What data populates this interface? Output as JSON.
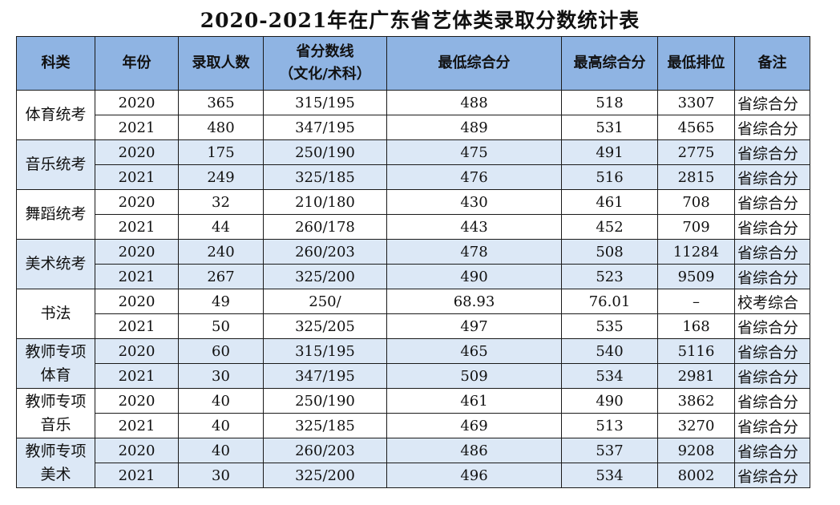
{
  "title": "2020-2021年在广东省艺体类录取分数统计表",
  "headers": [
    "科类",
    "年份",
    "录取人数",
    "省分数线",
    "（文化/术科）",
    "最低综合分",
    "最高综合分",
    "最低排位",
    "备注"
  ],
  "groups": [
    {
      "cat1": "体育统考",
      "cat2": "",
      "shade": false,
      "rows": [
        {
          "year": "2020",
          "count": "365",
          "line": "315/195",
          "min": "488",
          "max": "518",
          "rank": "3307",
          "note": "省综合分"
        },
        {
          "year": "2021",
          "count": "480",
          "line": "347/195",
          "min": "489",
          "max": "531",
          "rank": "4565",
          "note": "省综合分"
        }
      ]
    },
    {
      "cat1": "音乐统考",
      "cat2": "",
      "shade": true,
      "rows": [
        {
          "year": "2020",
          "count": "175",
          "line": "250/190",
          "min": "475",
          "max": "491",
          "rank": "2775",
          "note": "省综合分"
        },
        {
          "year": "2021",
          "count": "249",
          "line": "325/185",
          "min": "476",
          "max": "516",
          "rank": "2815",
          "note": "省综合分"
        }
      ]
    },
    {
      "cat1": "舞蹈统考",
      "cat2": "",
      "shade": false,
      "rows": [
        {
          "year": "2020",
          "count": "32",
          "line": "210/180",
          "min": "430",
          "max": "461",
          "rank": "708",
          "note": "省综合分"
        },
        {
          "year": "2021",
          "count": "44",
          "line": "260/178",
          "min": "443",
          "max": "452",
          "rank": "709",
          "note": "省综合分"
        }
      ]
    },
    {
      "cat1": "美术统考",
      "cat2": "",
      "shade": true,
      "rows": [
        {
          "year": "2020",
          "count": "240",
          "line": "260/203",
          "min": "478",
          "max": "508",
          "rank": "11284",
          "note": "省综合分"
        },
        {
          "year": "2021",
          "count": "267",
          "line": "325/200",
          "min": "490",
          "max": "523",
          "rank": "9509",
          "note": "省综合分"
        }
      ]
    },
    {
      "cat1": "书法",
      "cat2": "",
      "shade": false,
      "rows": [
        {
          "year": "2020",
          "count": "49",
          "line": "250/",
          "min": "68.93",
          "max": "76.01",
          "rank": "–",
          "note": "校考综合"
        },
        {
          "year": "2021",
          "count": "50",
          "line": "325/205",
          "min": "497",
          "max": "535",
          "rank": "168",
          "note": "省综合分"
        }
      ]
    },
    {
      "cat1": "教师专项",
      "cat2": "体育",
      "shade": true,
      "rows": [
        {
          "year": "2020",
          "count": "60",
          "line": "315/195",
          "min": "465",
          "max": "540",
          "rank": "5116",
          "note": "省综合分"
        },
        {
          "year": "2021",
          "count": "30",
          "line": "347/195",
          "min": "509",
          "max": "534",
          "rank": "2981",
          "note": "省综合分"
        }
      ]
    },
    {
      "cat1": "教师专项",
      "cat2": "音乐",
      "shade": false,
      "rows": [
        {
          "year": "2020",
          "count": "40",
          "line": "250/190",
          "min": "461",
          "max": "490",
          "rank": "3862",
          "note": "省综合分"
        },
        {
          "year": "2021",
          "count": "40",
          "line": "325/185",
          "min": "469",
          "max": "513",
          "rank": "3270",
          "note": "省综合分"
        }
      ]
    },
    {
      "cat1": "教师专项",
      "cat2": "美术",
      "shade": true,
      "rows": [
        {
          "year": "2020",
          "count": "40",
          "line": "260/203",
          "min": "486",
          "max": "537",
          "rank": "9208",
          "note": "省综合分"
        },
        {
          "year": "2021",
          "count": "30",
          "line": "325/200",
          "min": "496",
          "max": "534",
          "rank": "8002",
          "note": "省综合分"
        }
      ]
    }
  ]
}
